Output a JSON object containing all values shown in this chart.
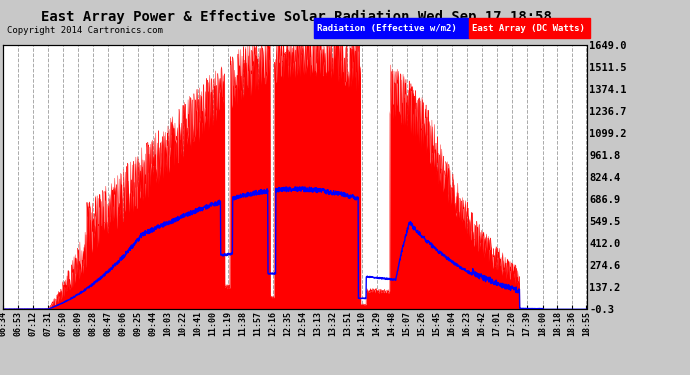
{
  "title": "East Array Power & Effective Solar Radiation Wed Sep 17 18:58",
  "copyright": "Copyright 2014 Cartronics.com",
  "legend_labels": [
    "Radiation (Effective w/m2)",
    "East Array (DC Watts)"
  ],
  "legend_colors": [
    "blue",
    "red"
  ],
  "yticks": [
    -0.3,
    137.2,
    274.6,
    412.0,
    549.5,
    686.9,
    824.4,
    961.8,
    1099.2,
    1236.7,
    1374.1,
    1511.5,
    1649.0
  ],
  "ymin": -0.3,
  "ymax": 1649.0,
  "bg_color": "#ffffff",
  "outer_bg": "#c8c8c8",
  "grid_color": "#aaaaaa",
  "xtick_labels": [
    "06:34",
    "06:53",
    "07:12",
    "07:31",
    "07:50",
    "08:09",
    "08:28",
    "08:47",
    "09:06",
    "09:25",
    "09:44",
    "10:03",
    "10:22",
    "10:41",
    "11:00",
    "11:19",
    "11:38",
    "11:57",
    "12:16",
    "12:35",
    "12:54",
    "13:13",
    "13:32",
    "13:51",
    "14:10",
    "14:29",
    "14:48",
    "15:07",
    "15:26",
    "15:45",
    "16:04",
    "16:23",
    "16:42",
    "17:01",
    "17:20",
    "17:39",
    "18:00",
    "18:18",
    "18:36",
    "18:55"
  ]
}
